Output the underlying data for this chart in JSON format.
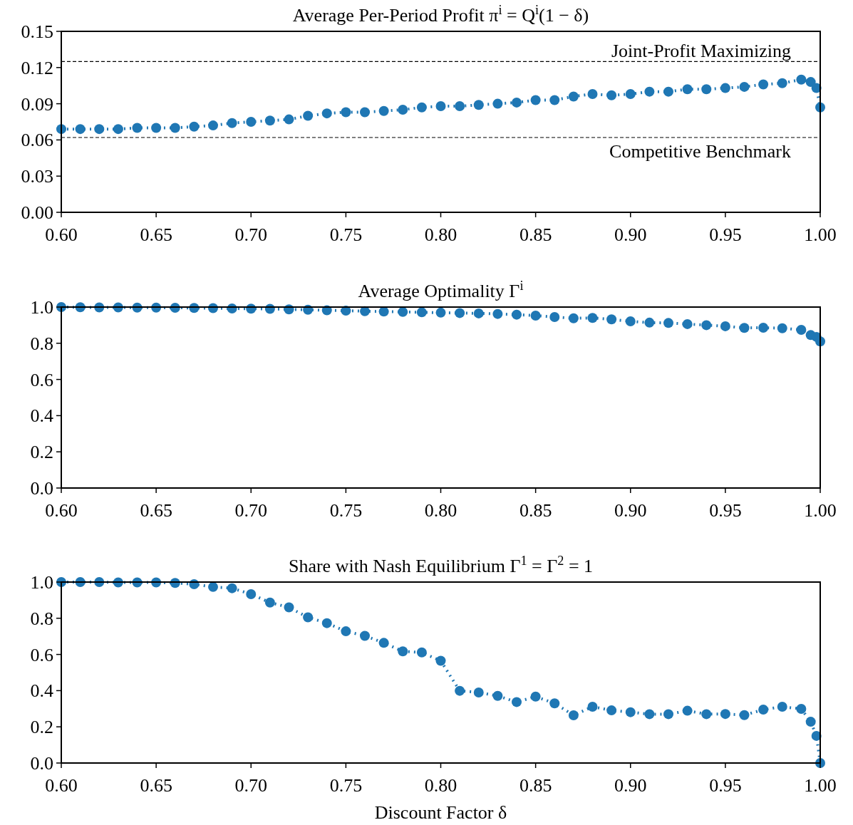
{
  "chart_data": [
    {
      "type": "line",
      "title": "Average Per-Period Profit π$^{i}$ = Q$^{i}$(1 − δ)",
      "x": [
        0.6,
        0.61,
        0.62,
        0.63,
        0.64,
        0.65,
        0.66,
        0.67,
        0.68,
        0.69,
        0.7,
        0.71,
        0.72,
        0.73,
        0.74,
        0.75,
        0.76,
        0.77,
        0.78,
        0.79,
        0.8,
        0.81,
        0.82,
        0.83,
        0.84,
        0.85,
        0.86,
        0.87,
        0.88,
        0.89,
        0.9,
        0.91,
        0.92,
        0.93,
        0.94,
        0.95,
        0.96,
        0.97,
        0.98,
        0.99,
        0.995,
        0.998,
        1.0
      ],
      "series": [
        {
          "color": "#1f77b4",
          "values": [
            0.069,
            0.069,
            0.069,
            0.069,
            0.07,
            0.07,
            0.07,
            0.071,
            0.072,
            0.074,
            0.075,
            0.076,
            0.077,
            0.08,
            0.082,
            0.083,
            0.083,
            0.084,
            0.085,
            0.087,
            0.088,
            0.088,
            0.089,
            0.09,
            0.091,
            0.093,
            0.093,
            0.096,
            0.098,
            0.097,
            0.098,
            0.1,
            0.1,
            0.102,
            0.102,
            0.103,
            0.104,
            0.106,
            0.107,
            0.11,
            0.108,
            0.103,
            0.087
          ]
        }
      ],
      "xlim": [
        0.6,
        1.0
      ],
      "ylim": [
        0,
        0.15
      ],
      "xticks": [
        {
          "value": 0.6,
          "label": "0.60"
        },
        {
          "value": 0.65,
          "label": "0.65"
        },
        {
          "value": 0.7,
          "label": "0.70"
        },
        {
          "value": 0.75,
          "label": "0.75"
        },
        {
          "value": 0.8,
          "label": "0.80"
        },
        {
          "value": 0.85,
          "label": "0.85"
        },
        {
          "value": 0.9,
          "label": "0.90"
        },
        {
          "value": 0.95,
          "label": "0.95"
        },
        {
          "value": 1.0,
          "label": "1.00"
        }
      ],
      "yticks": [
        {
          "value": 0,
          "label": "0.00"
        },
        {
          "value": 0.03,
          "label": "0.03"
        },
        {
          "value": 0.06,
          "label": "0.06"
        },
        {
          "value": 0.09,
          "label": "0.09"
        },
        {
          "value": 0.12,
          "label": "0.12"
        },
        {
          "value": 0.15,
          "label": "0.15"
        }
      ],
      "ref_lines": [
        {
          "axis": "y",
          "value": 0.125,
          "label": "Joint-Profit Maximizing",
          "color": "#000000",
          "line_style": "dashed"
        },
        {
          "axis": "y",
          "value": 0.062,
          "label": "Competitive Benchmark",
          "color": "#000000",
          "line_style": "dashed"
        }
      ],
      "marker": "circle",
      "line_style": "dotted"
    },
    {
      "type": "line",
      "title": "Average Optimality Γ$^{i}$",
      "x": [
        0.6,
        0.61,
        0.62,
        0.63,
        0.64,
        0.65,
        0.66,
        0.67,
        0.68,
        0.69,
        0.7,
        0.71,
        0.72,
        0.73,
        0.74,
        0.75,
        0.76,
        0.77,
        0.78,
        0.79,
        0.8,
        0.81,
        0.82,
        0.83,
        0.84,
        0.85,
        0.86,
        0.87,
        0.88,
        0.89,
        0.9,
        0.91,
        0.92,
        0.93,
        0.94,
        0.95,
        0.96,
        0.97,
        0.98,
        0.99,
        0.995,
        0.998,
        1.0
      ],
      "series": [
        {
          "color": "#1f77b4",
          "values": [
            1.0,
            0.999,
            0.998,
            0.998,
            0.997,
            0.997,
            0.996,
            0.995,
            0.994,
            0.992,
            0.991,
            0.99,
            0.987,
            0.985,
            0.982,
            0.98,
            0.977,
            0.975,
            0.973,
            0.971,
            0.969,
            0.967,
            0.965,
            0.962,
            0.958,
            0.953,
            0.945,
            0.938,
            0.94,
            0.932,
            0.921,
            0.914,
            0.912,
            0.906,
            0.9,
            0.894,
            0.885,
            0.886,
            0.883,
            0.874,
            0.845,
            0.835,
            0.81
          ]
        }
      ],
      "xlim": [
        0.6,
        1.0
      ],
      "ylim": [
        0,
        1.0
      ],
      "xticks": [
        {
          "value": 0.6,
          "label": "0.60"
        },
        {
          "value": 0.65,
          "label": "0.65"
        },
        {
          "value": 0.7,
          "label": "0.70"
        },
        {
          "value": 0.75,
          "label": "0.75"
        },
        {
          "value": 0.8,
          "label": "0.80"
        },
        {
          "value": 0.85,
          "label": "0.85"
        },
        {
          "value": 0.9,
          "label": "0.90"
        },
        {
          "value": 0.95,
          "label": "0.95"
        },
        {
          "value": 1.0,
          "label": "1.00"
        }
      ],
      "yticks": [
        {
          "value": 0,
          "label": "0.0"
        },
        {
          "value": 0.2,
          "label": "0.2"
        },
        {
          "value": 0.4,
          "label": "0.4"
        },
        {
          "value": 0.6,
          "label": "0.6"
        },
        {
          "value": 0.8,
          "label": "0.8"
        },
        {
          "value": 1.0,
          "label": "1.0"
        }
      ],
      "marker": "circle",
      "line_style": "dotted"
    },
    {
      "type": "line",
      "title": "Share with Nash Equilibrium Γ$^{1}$ = Γ$^{2}$ = 1",
      "xlabel": "Discount Factor δ",
      "x": [
        0.6,
        0.61,
        0.62,
        0.63,
        0.64,
        0.65,
        0.66,
        0.67,
        0.68,
        0.69,
        0.7,
        0.71,
        0.72,
        0.73,
        0.74,
        0.75,
        0.76,
        0.77,
        0.78,
        0.79,
        0.8,
        0.81,
        0.82,
        0.83,
        0.84,
        0.85,
        0.86,
        0.87,
        0.88,
        0.89,
        0.9,
        0.91,
        0.92,
        0.93,
        0.94,
        0.95,
        0.96,
        0.97,
        0.98,
        0.99,
        0.995,
        0.998,
        1.0
      ],
      "series": [
        {
          "color": "#1f77b4",
          "values": [
            1.0,
            1.0,
            1.0,
            0.998,
            0.998,
            0.998,
            0.995,
            0.988,
            0.973,
            0.966,
            0.933,
            0.887,
            0.86,
            0.805,
            0.773,
            0.728,
            0.703,
            0.664,
            0.617,
            0.611,
            0.565,
            0.399,
            0.39,
            0.371,
            0.337,
            0.367,
            0.33,
            0.264,
            0.311,
            0.291,
            0.281,
            0.27,
            0.27,
            0.289,
            0.27,
            0.271,
            0.265,
            0.295,
            0.311,
            0.299,
            0.228,
            0.15,
            0.0
          ]
        }
      ],
      "xlim": [
        0.6,
        1.0
      ],
      "ylim": [
        0,
        1.0
      ],
      "xticks": [
        {
          "value": 0.6,
          "label": "0.60"
        },
        {
          "value": 0.65,
          "label": "0.65"
        },
        {
          "value": 0.7,
          "label": "0.70"
        },
        {
          "value": 0.75,
          "label": "0.75"
        },
        {
          "value": 0.8,
          "label": "0.80"
        },
        {
          "value": 0.85,
          "label": "0.85"
        },
        {
          "value": 0.9,
          "label": "0.90"
        },
        {
          "value": 0.95,
          "label": "0.95"
        },
        {
          "value": 1.0,
          "label": "1.00"
        }
      ],
      "yticks": [
        {
          "value": 0,
          "label": "0.0"
        },
        {
          "value": 0.2,
          "label": "0.2"
        },
        {
          "value": 0.4,
          "label": "0.4"
        },
        {
          "value": 0.6,
          "label": "0.6"
        },
        {
          "value": 0.8,
          "label": "0.8"
        },
        {
          "value": 1.0,
          "label": "1.0"
        }
      ],
      "marker": "circle",
      "line_style": "dotted"
    }
  ]
}
